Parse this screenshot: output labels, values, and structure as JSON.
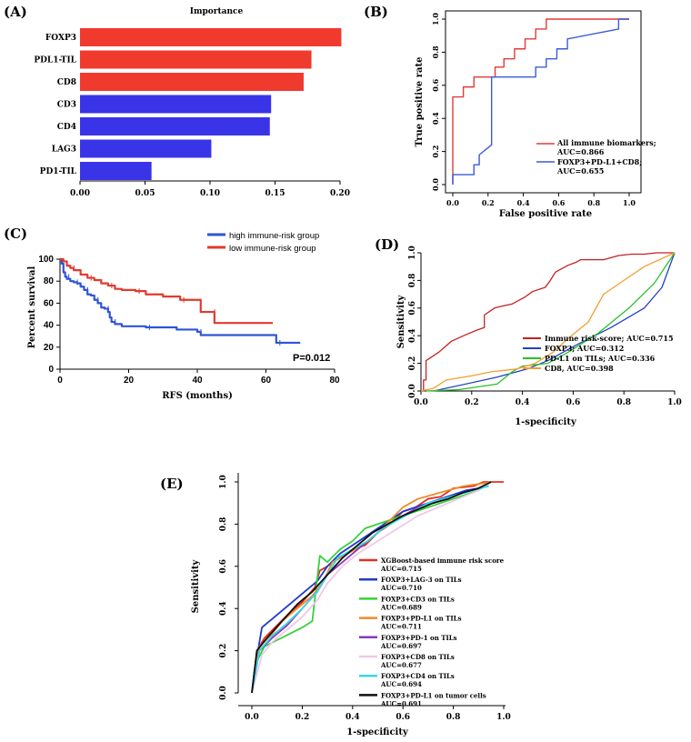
{
  "chart_data": [
    {
      "id": "A",
      "panel_label": "(A)",
      "type": "bar",
      "orientation": "horizontal",
      "title": "Importance",
      "categories": [
        "FOXP3",
        "PDL1-TIL",
        "CD8",
        "CD3",
        "CD4",
        "LAG3",
        "PD1-TIL"
      ],
      "values": [
        0.201,
        0.178,
        0.172,
        0.147,
        0.146,
        0.101,
        0.055
      ],
      "bar_colors": [
        "#f03a2e",
        "#f03a2e",
        "#f03a2e",
        "#3a34e8",
        "#3a34e8",
        "#3a34e8",
        "#3a34e8"
      ],
      "xlim": [
        0,
        0.2
      ],
      "xticks": [
        "0.00",
        "0.05",
        "0.10",
        "0.15",
        "0.20"
      ],
      "xticks_values": [
        0,
        0.05,
        0.1,
        0.15,
        0.2
      ]
    },
    {
      "id": "B",
      "panel_label": "(B)",
      "type": "line",
      "xlabel": "False positive rate",
      "ylabel": "True positive rate",
      "xlim": [
        0,
        1
      ],
      "ylim": [
        0,
        1
      ],
      "ticks": [
        "0.0",
        "0.2",
        "0.4",
        "0.6",
        "0.8",
        "1.0"
      ],
      "ticks_values": [
        0,
        0.2,
        0.4,
        0.6,
        0.8,
        1.0
      ],
      "legend_position": "bottom-right",
      "series": [
        {
          "name": "All immune biomarkers;",
          "auc_text": "AUC=0.866",
          "color": "#e23a3a",
          "x": [
            0,
            0,
            0,
            0.06,
            0.06,
            0.12,
            0.12,
            0.18,
            0.18,
            0.24,
            0.24,
            0.29,
            0.29,
            0.35,
            0.35,
            0.41,
            0.41,
            0.47,
            0.47,
            0.53,
            0.53,
            0.59,
            1.0
          ],
          "y": [
            0,
            0.06,
            0.53,
            0.53,
            0.59,
            0.59,
            0.65,
            0.65,
            0.65,
            0.65,
            0.71,
            0.71,
            0.76,
            0.76,
            0.82,
            0.82,
            0.88,
            0.88,
            0.94,
            0.94,
            1.0,
            1.0,
            1.0
          ]
        },
        {
          "name": "FOXP3+PD-L1+CD8;",
          "auc_text": "AUC=0.655",
          "color": "#3b5bd6",
          "x": [
            0,
            0,
            0.12,
            0.12,
            0.15,
            0.15,
            0.22,
            0.22,
            0.47,
            0.47,
            0.53,
            0.53,
            0.59,
            0.59,
            0.65,
            0.65,
            0.94,
            0.94,
            1.0
          ],
          "y": [
            0,
            0.06,
            0.06,
            0.12,
            0.12,
            0.18,
            0.24,
            0.65,
            0.65,
            0.71,
            0.71,
            0.76,
            0.76,
            0.82,
            0.82,
            0.88,
            0.94,
            1.0,
            1.0
          ]
        }
      ]
    },
    {
      "id": "C",
      "panel_label": "(C)",
      "type": "line",
      "subtype": "kaplan-meier",
      "xlabel": "RFS (months)",
      "ylabel": "Percent survival",
      "xlim": [
        0,
        80
      ],
      "ylim": [
        0,
        100
      ],
      "xticks": [
        "0",
        "20",
        "40",
        "60",
        "80"
      ],
      "xticks_values": [
        0,
        20,
        40,
        60,
        80
      ],
      "yticks": [
        "0",
        "20",
        "40",
        "60",
        "80",
        "100"
      ],
      "yticks_values": [
        0,
        20,
        40,
        60,
        80,
        100
      ],
      "annotation": "P=0.012",
      "legend_position": "top-right",
      "series": [
        {
          "name": "high immune-risk group",
          "color": "#2f55d4",
          "x": [
            0,
            0.5,
            1,
            1.5,
            2,
            3,
            4,
            5,
            6,
            7,
            8,
            9,
            10,
            11,
            12,
            13,
            14,
            14.5,
            15,
            16,
            18,
            25,
            33,
            34,
            40,
            41,
            62,
            63,
            70
          ],
          "y": [
            100,
            96,
            88,
            84,
            82,
            80,
            79,
            78,
            75,
            72,
            68,
            67,
            63,
            60,
            56,
            55,
            52,
            47,
            43,
            41,
            39,
            38,
            38,
            36,
            34,
            31,
            31,
            24,
            24
          ]
        },
        {
          "name": "low immune-risk group",
          "color": "#e23a2e",
          "x": [
            0,
            1,
            2,
            3,
            4,
            6,
            8,
            10,
            12,
            14,
            16,
            18,
            22,
            25,
            30,
            35,
            40,
            41,
            44,
            45,
            62
          ],
          "y": [
            100,
            98,
            94,
            92,
            90,
            86,
            83,
            81,
            78,
            76,
            73,
            72,
            71,
            68,
            66,
            63,
            63,
            52,
            52,
            42,
            42
          ]
        }
      ]
    },
    {
      "id": "D",
      "panel_label": "(D)",
      "type": "line",
      "xlabel": "1-specificity",
      "ylabel": "Sensitivity",
      "xlim": [
        0,
        1
      ],
      "ylim": [
        0,
        1
      ],
      "ticks": [
        "0.0",
        "0.2",
        "0.4",
        "0.6",
        "0.8",
        "1.0"
      ],
      "ticks_values": [
        0,
        0.2,
        0.4,
        0.6,
        0.8,
        1.0
      ],
      "legend_position": "bottom-right",
      "series": [
        {
          "name": "Immune risk-score; AUC=0.715",
          "color": "#c62020",
          "x": [
            0,
            0.01,
            0.01,
            0.02,
            0.02,
            0.07,
            0.12,
            0.18,
            0.22,
            0.25,
            0.25,
            0.29,
            0.31,
            0.36,
            0.39,
            0.41,
            0.44,
            0.49,
            0.51,
            0.53,
            0.56,
            0.58,
            0.61,
            0.63,
            0.67,
            0.72,
            0.78,
            0.83,
            0.88,
            0.93,
            1.0
          ],
          "y": [
            0,
            0,
            0.08,
            0.08,
            0.22,
            0.28,
            0.36,
            0.41,
            0.44,
            0.46,
            0.55,
            0.6,
            0.61,
            0.63,
            0.66,
            0.68,
            0.72,
            0.75,
            0.8,
            0.86,
            0.89,
            0.91,
            0.93,
            0.95,
            0.95,
            0.95,
            0.98,
            0.99,
            0.99,
            1.0,
            1.0
          ]
        },
        {
          "name": "FOXP3; AUC=0.312",
          "color": "#2440c8",
          "x": [
            0.05,
            0.3,
            0.42,
            0.5,
            0.62,
            0.75,
            0.88,
            0.95,
            1.0
          ],
          "y": [
            0,
            0.1,
            0.16,
            0.22,
            0.34,
            0.46,
            0.6,
            0.75,
            1.0
          ]
        },
        {
          "name": "PD-L1 on TILs; AUC=0.336",
          "color": "#28c028",
          "x": [
            0.02,
            0.15,
            0.3,
            0.36,
            0.4,
            0.5,
            0.58,
            0.7,
            0.82,
            0.92,
            1.0
          ],
          "y": [
            0,
            0.01,
            0.05,
            0.14,
            0.18,
            0.2,
            0.28,
            0.42,
            0.6,
            0.78,
            1.0
          ]
        },
        {
          "name": "CD8, AUC=0.398",
          "color": "#f0a030",
          "x": [
            0,
            0.05,
            0.1,
            0.2,
            0.28,
            0.38,
            0.45,
            0.52,
            0.58,
            0.66,
            0.72,
            0.8,
            0.88,
            1.0
          ],
          "y": [
            0,
            0.02,
            0.08,
            0.11,
            0.14,
            0.16,
            0.2,
            0.28,
            0.38,
            0.5,
            0.7,
            0.8,
            0.9,
            1.0
          ]
        }
      ]
    },
    {
      "id": "E",
      "panel_label": "(E)",
      "type": "line",
      "xlabel": "1-specificity",
      "ylabel": "Sensitivity",
      "xlim": [
        0,
        1
      ],
      "ylim": [
        0,
        1
      ],
      "ticks": [
        "0.0",
        "0.2",
        "0.4",
        "0.6",
        "0.8",
        "1.0"
      ],
      "ticks_values": [
        0,
        0.2,
        0.4,
        0.6,
        0.8,
        1.0
      ],
      "legend_position": "bottom-right",
      "series": [
        {
          "name": "XGBoost-based immune risk score",
          "auc_text": "AUC=0.715",
          "color": "#e23020",
          "x": [
            0,
            0.02,
            0.05,
            0.1,
            0.15,
            0.2,
            0.25,
            0.27,
            0.3,
            0.32,
            0.35,
            0.4,
            0.45,
            0.5,
            0.55,
            0.6,
            0.65,
            0.7,
            0.75,
            0.8,
            0.88,
            0.92,
            1.0
          ],
          "y": [
            0,
            0.2,
            0.26,
            0.32,
            0.38,
            0.43,
            0.5,
            0.58,
            0.6,
            0.62,
            0.64,
            0.68,
            0.7,
            0.76,
            0.8,
            0.86,
            0.88,
            0.92,
            0.93,
            0.97,
            0.98,
            1.0,
            1.0
          ]
        },
        {
          "name": "FOXP3+LAG-3 on TILs",
          "auc_text": "AUC=0.710",
          "color": "#2038d0",
          "x": [
            0,
            0.01,
            0.04,
            0.1,
            0.15,
            0.2,
            0.26,
            0.3,
            0.35,
            0.4,
            0.45,
            0.5,
            0.55,
            0.6,
            0.65,
            0.7,
            0.75,
            0.8,
            0.85,
            0.9,
            0.94
          ],
          "y": [
            0,
            0.1,
            0.31,
            0.37,
            0.42,
            0.47,
            0.53,
            0.6,
            0.66,
            0.7,
            0.74,
            0.78,
            0.82,
            0.86,
            0.88,
            0.9,
            0.92,
            0.94,
            0.96,
            0.97,
            0.98
          ]
        },
        {
          "name": "FOXP3+CD3 on TILs",
          "auc_text": "AUC=0.689",
          "color": "#38d038",
          "x": [
            0,
            0.02,
            0.05,
            0.1,
            0.15,
            0.2,
            0.24,
            0.27,
            0.3,
            0.35,
            0.4,
            0.45,
            0.5,
            0.55,
            0.6,
            0.7,
            0.8,
            0.9,
            0.95
          ],
          "y": [
            0,
            0.15,
            0.22,
            0.25,
            0.28,
            0.31,
            0.34,
            0.65,
            0.62,
            0.68,
            0.72,
            0.78,
            0.8,
            0.82,
            0.84,
            0.88,
            0.92,
            0.96,
            1.0
          ]
        },
        {
          "name": "FOXP3+PD-L1 on TILs",
          "auc_text": "AUC=0.711",
          "color": "#f08a28",
          "x": [
            0,
            0.03,
            0.08,
            0.12,
            0.18,
            0.24,
            0.28,
            0.32,
            0.38,
            0.44,
            0.5,
            0.55,
            0.6,
            0.66,
            0.72,
            0.78,
            0.84,
            0.9,
            0.95
          ],
          "y": [
            0,
            0.22,
            0.28,
            0.34,
            0.4,
            0.46,
            0.52,
            0.62,
            0.66,
            0.7,
            0.76,
            0.82,
            0.88,
            0.92,
            0.94,
            0.96,
            0.98,
            0.99,
            1.0
          ]
        },
        {
          "name": "FOXP3+PD-1 on TILs",
          "auc_text": "AUC=0.697",
          "color": "#8a38b8",
          "x": [
            0,
            0.03,
            0.08,
            0.14,
            0.2,
            0.26,
            0.3,
            0.36,
            0.42,
            0.48,
            0.54,
            0.6,
            0.66,
            0.72,
            0.78,
            0.84,
            0.9,
            0.95
          ],
          "y": [
            0,
            0.2,
            0.26,
            0.32,
            0.4,
            0.48,
            0.56,
            0.62,
            0.68,
            0.74,
            0.8,
            0.84,
            0.88,
            0.9,
            0.92,
            0.95,
            0.97,
            1.0
          ]
        },
        {
          "name": "FOXP3+CD8 on TILs",
          "auc_text": "AUC=0.677",
          "color": "#f0c8e8",
          "x": [
            0,
            0.04,
            0.08,
            0.14,
            0.2,
            0.26,
            0.3,
            0.36,
            0.42,
            0.5,
            0.58,
            0.66,
            0.74,
            0.82,
            0.9,
            0.95
          ],
          "y": [
            0,
            0.18,
            0.24,
            0.3,
            0.36,
            0.44,
            0.52,
            0.6,
            0.66,
            0.72,
            0.78,
            0.84,
            0.88,
            0.92,
            0.96,
            1.0
          ]
        },
        {
          "name": "FOXP3+CD4 on TILs",
          "auc_text": "AUC=0.694",
          "color": "#38d8e8",
          "x": [
            0,
            0.03,
            0.08,
            0.14,
            0.2,
            0.26,
            0.3,
            0.34,
            0.4,
            0.46,
            0.52,
            0.58,
            0.64,
            0.7,
            0.76,
            0.82,
            0.88,
            0.94
          ],
          "y": [
            0,
            0.2,
            0.27,
            0.33,
            0.4,
            0.48,
            0.56,
            0.64,
            0.68,
            0.72,
            0.78,
            0.82,
            0.86,
            0.9,
            0.92,
            0.94,
            0.96,
            0.98
          ]
        },
        {
          "name": "FOXP3+PD-L1 on tumor cells",
          "auc_text": "AUC=0.691",
          "color": "#101010",
          "x": [
            0,
            0.02,
            0.06,
            0.12,
            0.18,
            0.24,
            0.3,
            0.36,
            0.42,
            0.48,
            0.54,
            0.6,
            0.66,
            0.72,
            0.78,
            0.84,
            0.9,
            0.95
          ],
          "y": [
            0,
            0.2,
            0.26,
            0.34,
            0.42,
            0.48,
            0.56,
            0.64,
            0.7,
            0.76,
            0.8,
            0.84,
            0.87,
            0.9,
            0.92,
            0.95,
            0.97,
            1.0
          ]
        }
      ]
    }
  ]
}
